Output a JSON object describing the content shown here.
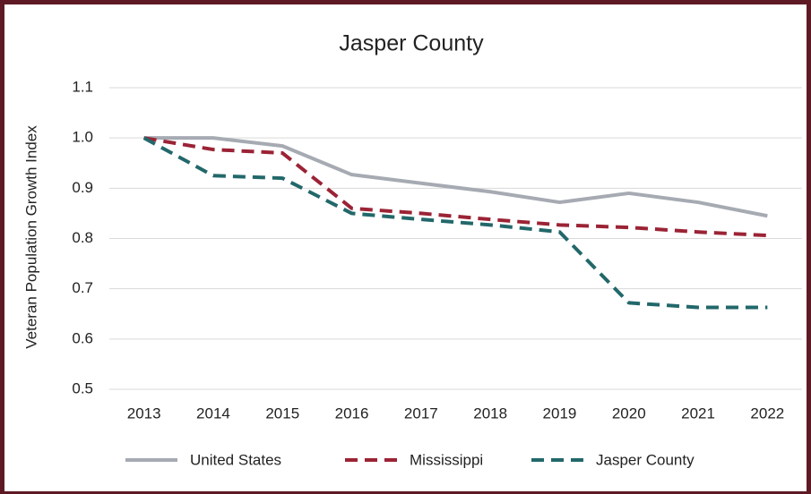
{
  "chart_data": {
    "type": "line",
    "title": "Jasper County",
    "y_label": "Veteran Population Growth Index",
    "categories": [
      "2013",
      "2014",
      "2015",
      "2016",
      "2017",
      "2018",
      "2019",
      "2020",
      "2021",
      "2022"
    ],
    "series": [
      {
        "name": "United States",
        "color": "#a6aab2",
        "dash": false,
        "values": [
          1.0,
          1.0,
          0.984,
          0.927,
          0.91,
          0.893,
          0.872,
          0.89,
          0.872,
          0.845
        ]
      },
      {
        "name": "Mississippi",
        "color": "#9b2335",
        "dash": true,
        "values": [
          1.0,
          0.977,
          0.97,
          0.86,
          0.85,
          0.838,
          0.827,
          0.822,
          0.813,
          0.806
        ]
      },
      {
        "name": "Jasper County",
        "color": "#22686a",
        "dash": true,
        "values": [
          1.0,
          0.925,
          0.92,
          0.85,
          0.838,
          0.827,
          0.813,
          0.672,
          0.663,
          0.663
        ]
      }
    ],
    "ylim": [
      0.5,
      1.1
    ],
    "yticks": [
      0.5,
      0.6,
      0.7,
      0.8,
      0.9,
      {
        "value": 1.0,
        "label": "1.0"
      },
      1.1
    ],
    "grid": true,
    "legend": "bottom"
  }
}
